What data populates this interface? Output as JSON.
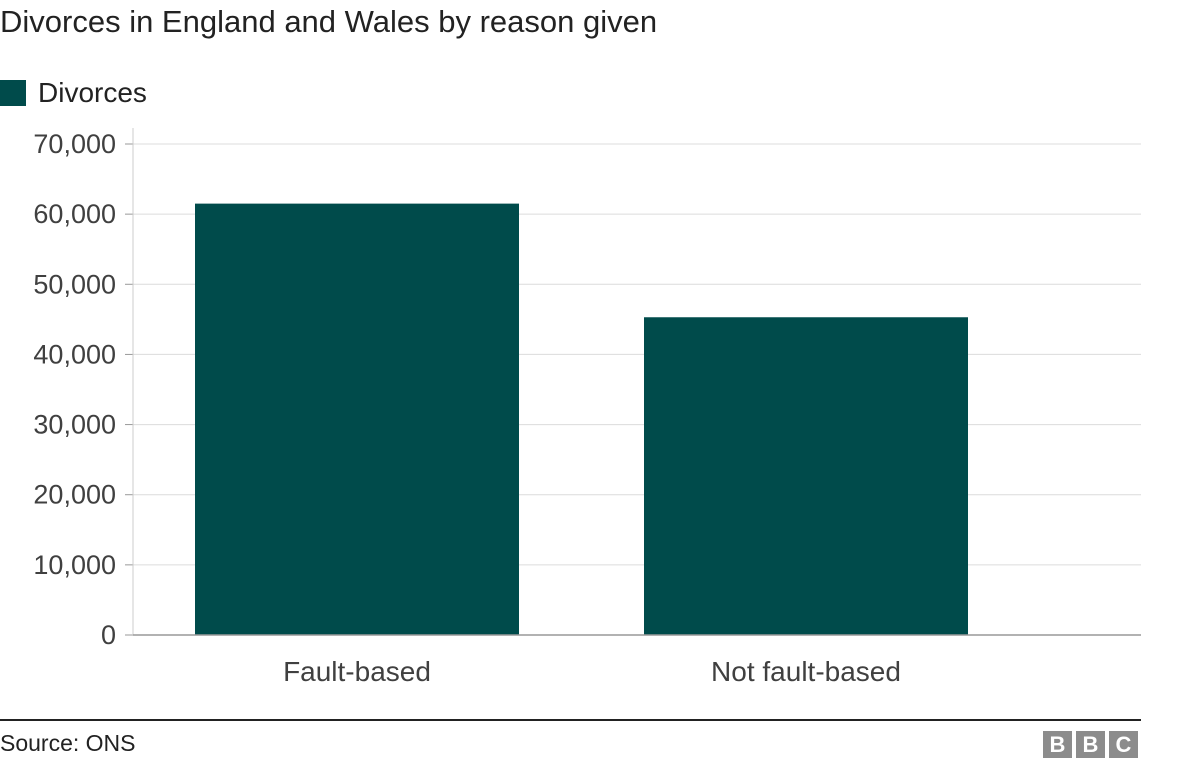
{
  "chart_data": {
    "type": "bar",
    "title": "Divorces in England and Wales by reason given",
    "xlabel": "",
    "ylabel": "",
    "categories": [
      "Fault-based",
      "Not fault-based"
    ],
    "series": [
      {
        "name": "Divorces",
        "values": [
          61500,
          45300
        ],
        "color": "#004b4b"
      }
    ],
    "ylim": [
      0,
      70000
    ],
    "yticks": [
      0,
      10000,
      20000,
      30000,
      40000,
      50000,
      60000,
      70000
    ],
    "ytick_labels": [
      "0",
      "10,000",
      "20,000",
      "30,000",
      "40,000",
      "50,000",
      "60,000",
      "70,000"
    ],
    "grid": true,
    "legend_position": "top-left"
  },
  "footer": {
    "source": "Source: ONS",
    "logo_letters": [
      "B",
      "B",
      "C"
    ]
  },
  "colors": {
    "bar": "#004b4b",
    "grid": "#dcdcdc",
    "axis": "#999999"
  }
}
